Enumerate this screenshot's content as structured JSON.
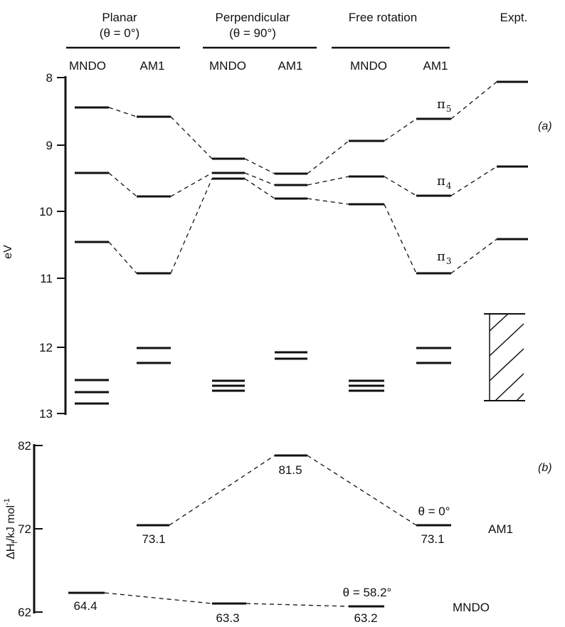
{
  "headers": {
    "planar": "Planar",
    "planar_sub": "(θ = 0°)",
    "perpendicular": "Perpendicular",
    "perpendicular_sub": "(θ = 90°)",
    "free": "Free rotation",
    "expt": "Expt."
  },
  "method_labels": [
    "MNDO",
    "AM1",
    "MNDO",
    "AM1",
    "MNDO",
    "AM1"
  ],
  "panel_a": {
    "panel_label": "(a)",
    "axis_label": "eV",
    "ticks": [
      "8",
      "9",
      "10",
      "11",
      "12",
      "13"
    ],
    "orbital_labels": [
      {
        "letter": "π",
        "sub": "5"
      },
      {
        "letter": "π",
        "sub": "4"
      },
      {
        "letter": "π",
        "sub": "3"
      }
    ]
  },
  "panel_b": {
    "panel_label": "(b)",
    "axis_label": "ΔH",
    "axis_label_sub": "f",
    "axis_label_unit": "/kJ mol",
    "axis_label_sup": "-1",
    "ticks": [
      "82",
      "72",
      "62"
    ],
    "values": [
      "64.4",
      "73.1",
      "63.3",
      "81.5",
      "63.2",
      "73.1"
    ],
    "notes": {
      "am1_angle": "θ = 0°",
      "mndo_angle": "θ = 58.2°",
      "am1": "AM1",
      "mndo": "MNDO"
    }
  },
  "chart_data": {
    "type": "energy-level diagram",
    "columns": [
      "Planar MNDO",
      "Planar AM1",
      "Perpendicular MNDO",
      "Perpendicular AM1",
      "Free rotation MNDO",
      "Free rotation AM1",
      "Expt."
    ],
    "panel_a_ylim": [
      8,
      13
    ],
    "panel_a_levels_eV": [
      [
        8.45,
        9.42,
        10.45,
        12.48,
        12.66,
        12.83
      ],
      [
        8.57,
        9.76,
        10.9,
        12.0,
        12.23
      ],
      [
        9.2,
        9.42,
        9.47,
        12.49,
        12.56,
        12.64
      ],
      [
        9.42,
        9.58,
        9.79,
        12.07,
        12.16
      ],
      [
        8.92,
        9.46,
        9.87,
        12.49,
        12.56,
        12.64
      ],
      [
        8.59,
        9.74,
        10.9,
        12.0,
        12.23
      ],
      [
        8.02,
        9.3,
        10.4
      ]
    ],
    "panel_a_expt_band_eV": [
      11.52,
      12.77
    ],
    "panel_b_ylim": [
      62,
      82
    ],
    "panel_b_heats_kJ_mol": {
      "MNDO": {
        "Planar": 64.4,
        "Perpendicular": 63.3,
        "Free rotation": 63.2
      },
      "AM1": {
        "Planar": 73.1,
        "Perpendicular": 81.5,
        "Free rotation": 73.1
      }
    }
  }
}
